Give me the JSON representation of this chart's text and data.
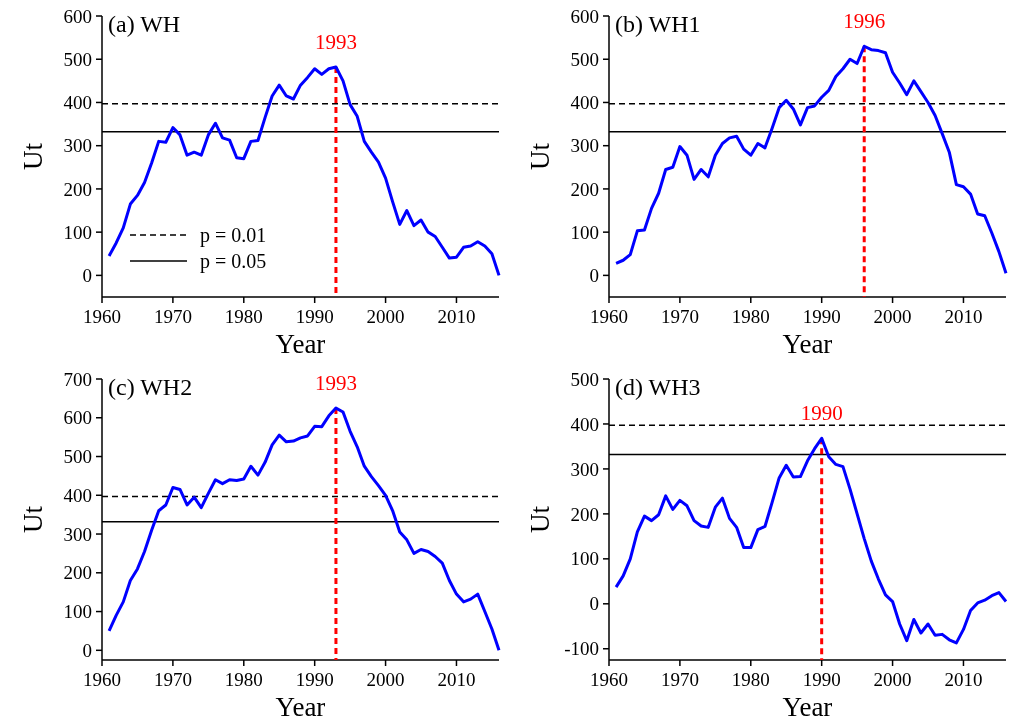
{
  "chart_data": [
    {
      "type": "line",
      "title": "(a) WH",
      "xlabel": "Year",
      "ylabel": "Ut",
      "xlim": [
        1960,
        2016
      ],
      "xticks": [
        1960,
        1970,
        1980,
        1990,
        2000,
        2010
      ],
      "ylim": [
        -50,
        600
      ],
      "yticks": [
        0,
        100,
        200,
        300,
        400,
        500,
        600
      ],
      "grid": false,
      "x": [
        1961,
        1962,
        1963,
        1964,
        1965,
        1966,
        1967,
        1968,
        1969,
        1970,
        1971,
        1972,
        1973,
        1974,
        1975,
        1976,
        1977,
        1978,
        1979,
        1980,
        1981,
        1982,
        1983,
        1984,
        1985,
        1986,
        1987,
        1988,
        1989,
        1990,
        1991,
        1992,
        1993,
        1994,
        1995,
        1996,
        1997,
        1998,
        1999,
        2000,
        2001,
        2002,
        2003,
        2004,
        2005,
        2006,
        2007,
        2008,
        2009,
        2010,
        2011,
        2012,
        2013,
        2014,
        2015,
        2016
      ],
      "series": [
        {
          "color": "#0000ff",
          "values": [
            45,
            75,
            110,
            165,
            185,
            215,
            260,
            310,
            308,
            342,
            325,
            278,
            285,
            278,
            325,
            352,
            318,
            313,
            272,
            270,
            310,
            312,
            365,
            415,
            440,
            415,
            408,
            440,
            458,
            478,
            465,
            478,
            482,
            450,
            395,
            368,
            310,
            285,
            262,
            225,
            170,
            118,
            150,
            115,
            128,
            100,
            90,
            65,
            40,
            42,
            65,
            68,
            78,
            68,
            50,
            0
          ]
        }
      ],
      "annotations": [
        "p = 0.01",
        "p = 0.05"
      ],
      "ref_lines": [
        {
          "axis": "y",
          "value": 397,
          "color": "#000000",
          "line_style": "dashed"
        },
        {
          "axis": "y",
          "value": 332,
          "color": "#000000",
          "line_style": "solid"
        },
        {
          "axis": "x",
          "value": 1993,
          "label": "1993",
          "color": "#ff0000",
          "line_style": "dashed"
        }
      ]
    },
    {
      "type": "line",
      "title": "(b) WH1",
      "xlabel": "Year",
      "ylabel": "Ut",
      "xlim": [
        1960,
        2016
      ],
      "xticks": [
        1960,
        1970,
        1980,
        1990,
        2000,
        2010
      ],
      "ylim": [
        -50,
        600
      ],
      "yticks": [
        0,
        100,
        200,
        300,
        400,
        500,
        600
      ],
      "grid": false,
      "x": [
        1961,
        1962,
        1963,
        1964,
        1965,
        1966,
        1967,
        1968,
        1969,
        1970,
        1971,
        1972,
        1973,
        1974,
        1975,
        1976,
        1977,
        1978,
        1979,
        1980,
        1981,
        1982,
        1983,
        1984,
        1985,
        1986,
        1987,
        1988,
        1989,
        1990,
        1991,
        1992,
        1993,
        1994,
        1995,
        1996,
        1997,
        1998,
        1999,
        2000,
        2001,
        2002,
        2003,
        2004,
        2005,
        2006,
        2007,
        2008,
        2009,
        2010,
        2011,
        2012,
        2013,
        2014,
        2015,
        2016
      ],
      "series": [
        {
          "color": "#0000ff",
          "values": [
            28,
            35,
            48,
            103,
            105,
            155,
            190,
            245,
            250,
            298,
            278,
            222,
            245,
            228,
            278,
            305,
            318,
            322,
            292,
            278,
            305,
            295,
            340,
            388,
            405,
            385,
            348,
            388,
            392,
            412,
            428,
            460,
            478,
            500,
            490,
            530,
            522,
            520,
            515,
            470,
            445,
            418,
            450,
            425,
            400,
            370,
            328,
            285,
            210,
            205,
            188,
            142,
            138,
            98,
            55,
            5
          ]
        }
      ],
      "ref_lines": [
        {
          "axis": "y",
          "value": 397,
          "color": "#000000",
          "line_style": "dashed"
        },
        {
          "axis": "y",
          "value": 332,
          "color": "#000000",
          "line_style": "solid"
        },
        {
          "axis": "x",
          "value": 1996,
          "label": "1996",
          "color": "#ff0000",
          "line_style": "dashed"
        }
      ]
    },
    {
      "type": "line",
      "title": "(c) WH2",
      "xlabel": "Year",
      "ylabel": "Ut",
      "xlim": [
        1960,
        2016
      ],
      "xticks": [
        1960,
        1970,
        1980,
        1990,
        2000,
        2010
      ],
      "ylim": [
        -25,
        700
      ],
      "yticks": [
        0,
        100,
        200,
        300,
        400,
        500,
        600,
        700
      ],
      "grid": false,
      "x": [
        1961,
        1962,
        1963,
        1964,
        1965,
        1966,
        1967,
        1968,
        1969,
        1970,
        1971,
        1972,
        1973,
        1974,
        1975,
        1976,
        1977,
        1978,
        1979,
        1980,
        1981,
        1982,
        1983,
        1984,
        1985,
        1986,
        1987,
        1988,
        1989,
        1990,
        1991,
        1992,
        1993,
        1994,
        1995,
        1996,
        1997,
        1998,
        1999,
        2000,
        2001,
        2002,
        2003,
        2004,
        2005,
        2006,
        2007,
        2008,
        2009,
        2010,
        2011,
        2012,
        2013,
        2014,
        2015,
        2016
      ],
      "series": [
        {
          "color": "#0000ff",
          "values": [
            50,
            90,
            125,
            180,
            210,
            255,
            310,
            360,
            375,
            420,
            415,
            375,
            395,
            368,
            405,
            440,
            430,
            440,
            438,
            442,
            475,
            452,
            485,
            530,
            555,
            538,
            540,
            548,
            553,
            578,
            577,
            605,
            625,
            615,
            565,
            525,
            475,
            448,
            425,
            400,
            360,
            305,
            285,
            250,
            260,
            255,
            242,
            225,
            180,
            145,
            125,
            132,
            145,
            100,
            55,
            0
          ]
        }
      ],
      "ref_lines": [
        {
          "axis": "y",
          "value": 397,
          "color": "#000000",
          "line_style": "dashed"
        },
        {
          "axis": "y",
          "value": 332,
          "color": "#000000",
          "line_style": "solid"
        },
        {
          "axis": "x",
          "value": 1993,
          "label": "1993",
          "color": "#ff0000",
          "line_style": "dashed"
        }
      ]
    },
    {
      "type": "line",
      "title": "(d) WH3",
      "xlabel": "Year",
      "ylabel": "Ut",
      "xlim": [
        1960,
        2016
      ],
      "xticks": [
        1960,
        1970,
        1980,
        1990,
        2000,
        2010
      ],
      "ylim": [
        -125,
        500
      ],
      "yticks": [
        -100,
        0,
        100,
        200,
        300,
        400,
        500
      ],
      "grid": false,
      "x": [
        1961,
        1962,
        1963,
        1964,
        1965,
        1966,
        1967,
        1968,
        1969,
        1970,
        1971,
        1972,
        1973,
        1974,
        1975,
        1976,
        1977,
        1978,
        1979,
        1980,
        1981,
        1982,
        1983,
        1984,
        1985,
        1986,
        1987,
        1988,
        1989,
        1990,
        1991,
        1992,
        1993,
        1994,
        1995,
        1996,
        1997,
        1998,
        1999,
        2000,
        2001,
        2002,
        2003,
        2004,
        2005,
        2006,
        2007,
        2008,
        2009,
        2010,
        2011,
        2012,
        2013,
        2014,
        2015,
        2016
      ],
      "series": [
        {
          "color": "#0000ff",
          "values": [
            37,
            62,
            100,
            160,
            195,
            185,
            198,
            240,
            210,
            230,
            218,
            185,
            173,
            170,
            215,
            235,
            190,
            170,
            125,
            125,
            165,
            172,
            225,
            280,
            308,
            282,
            283,
            318,
            345,
            368,
            327,
            310,
            305,
            255,
            200,
            145,
            95,
            55,
            20,
            5,
            -45,
            -82,
            -35,
            -65,
            -45,
            -70,
            -68,
            -80,
            -87,
            -57,
            -15,
            2,
            8,
            18,
            25,
            5
          ]
        }
      ],
      "ref_lines": [
        {
          "axis": "y",
          "value": 397,
          "color": "#000000",
          "line_style": "dashed"
        },
        {
          "axis": "y",
          "value": 332,
          "color": "#000000",
          "line_style": "solid"
        },
        {
          "axis": "x",
          "value": 1990,
          "label": "1990",
          "color": "#ff0000",
          "line_style": "dashed"
        }
      ]
    }
  ]
}
